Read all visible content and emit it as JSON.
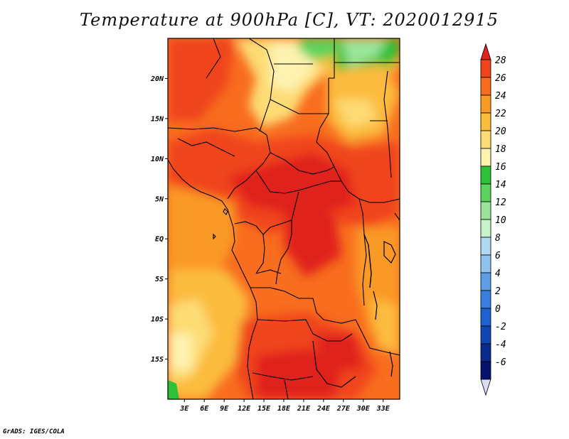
{
  "title": "Temperature at 900hPa [C], VT: 2020012915",
  "footer": "GrADS: IGES/COLA",
  "lat_ticks": [
    "20N",
    "15N",
    "10N",
    "5N",
    "EQ",
    "5S",
    "10S",
    "15S"
  ],
  "lon_ticks": [
    "3E",
    "6E",
    "9E",
    "12E",
    "15E",
    "18E",
    "21E",
    "24E",
    "27E",
    "30E",
    "33E"
  ],
  "map_extent": {
    "lon_min": 0.5,
    "lon_max": 35.5,
    "lat_min": -20,
    "lat_max": 25
  },
  "colorbar": {
    "levels": [
      "28",
      "26",
      "24",
      "22",
      "20",
      "18",
      "16",
      "14",
      "12",
      "10",
      "8",
      "6",
      "4",
      "2",
      "0",
      "-2",
      "-4",
      "-6"
    ],
    "colors_top_to_bottom": [
      "#e0231b",
      "#f0441c",
      "#f86d1e",
      "#fa9a28",
      "#fbbb3c",
      "#fddc74",
      "#fef2b0",
      "#2ec036",
      "#5cd35c",
      "#9ae59a",
      "#c8f2c8",
      "#b0d8f2",
      "#8ec4ee",
      "#5e9ee8",
      "#3a7fe0",
      "#1e62d2",
      "#1246b4",
      "#0a2a8c",
      "#06126c",
      "#dcdcf4"
    ]
  }
}
